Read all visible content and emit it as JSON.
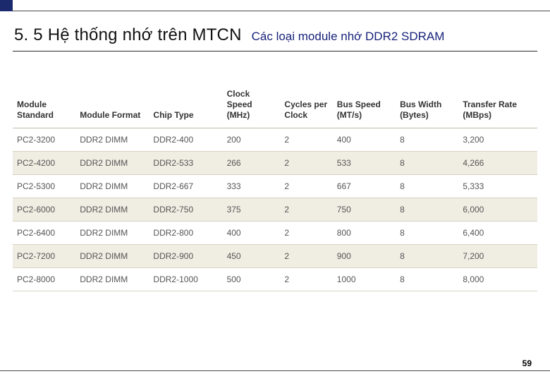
{
  "header": {
    "title": "5. 5 Hệ thống nhớ trên MTCN",
    "subtitle": "Các loại module nhớ DDR2 SDRAM",
    "title_color": "#111111",
    "subtitle_color": "#18237a",
    "accent_color": "#1a2a6c"
  },
  "table": {
    "header_bg": "#ffffff",
    "row_alt_bg": "#f0ede2",
    "header_fontsize": 12,
    "cell_fontsize": 12,
    "columns": [
      {
        "key": "module_standard",
        "label": "Module Standard",
        "width_pct": 12
      },
      {
        "key": "module_format",
        "label": "Module Format",
        "width_pct": 14
      },
      {
        "key": "chip_type",
        "label": "Chip Type",
        "width_pct": 14
      },
      {
        "key": "clock_speed",
        "label": "Clock Speed (MHz)",
        "width_pct": 11
      },
      {
        "key": "cycles_per_clock",
        "label": "Cycles per Clock",
        "width_pct": 10
      },
      {
        "key": "bus_speed",
        "label": "Bus Speed (MT/s)",
        "width_pct": 12
      },
      {
        "key": "bus_width",
        "label": "Bus Width (Bytes)",
        "width_pct": 12
      },
      {
        "key": "transfer_rate",
        "label": "Transfer Rate (MBps)",
        "width_pct": 15
      }
    ],
    "rows": [
      {
        "module_standard": "PC2-3200",
        "module_format": "DDR2 DIMM",
        "chip_type": "DDR2-400",
        "clock_speed": "200",
        "cycles_per_clock": "2",
        "bus_speed": "400",
        "bus_width": "8",
        "transfer_rate": "3,200"
      },
      {
        "module_standard": "PC2-4200",
        "module_format": "DDR2 DIMM",
        "chip_type": "DDR2-533",
        "clock_speed": "266",
        "cycles_per_clock": "2",
        "bus_speed": "533",
        "bus_width": "8",
        "transfer_rate": "4,266"
      },
      {
        "module_standard": "PC2-5300",
        "module_format": "DDR2 DIMM",
        "chip_type": "DDR2-667",
        "clock_speed": "333",
        "cycles_per_clock": "2",
        "bus_speed": "667",
        "bus_width": "8",
        "transfer_rate": "5,333"
      },
      {
        "module_standard": "PC2-6000",
        "module_format": "DDR2 DIMM",
        "chip_type": "DDR2-750",
        "clock_speed": "375",
        "cycles_per_clock": "2",
        "bus_speed": "750",
        "bus_width": "8",
        "transfer_rate": "6,000"
      },
      {
        "module_standard": "PC2-6400",
        "module_format": "DDR2 DIMM",
        "chip_type": "DDR2-800",
        "clock_speed": "400",
        "cycles_per_clock": "2",
        "bus_speed": "800",
        "bus_width": "8",
        "transfer_rate": "6,400"
      },
      {
        "module_standard": "PC2-7200",
        "module_format": "DDR2 DIMM",
        "chip_type": "DDR2-900",
        "clock_speed": "450",
        "cycles_per_clock": "2",
        "bus_speed": "900",
        "bus_width": "8",
        "transfer_rate": "7,200"
      },
      {
        "module_standard": "PC2-8000",
        "module_format": "DDR2 DIMM",
        "chip_type": "DDR2-1000",
        "clock_speed": "500",
        "cycles_per_clock": "2",
        "bus_speed": "1000",
        "bus_width": "8",
        "transfer_rate": "8,000"
      }
    ]
  },
  "page_number": "59"
}
